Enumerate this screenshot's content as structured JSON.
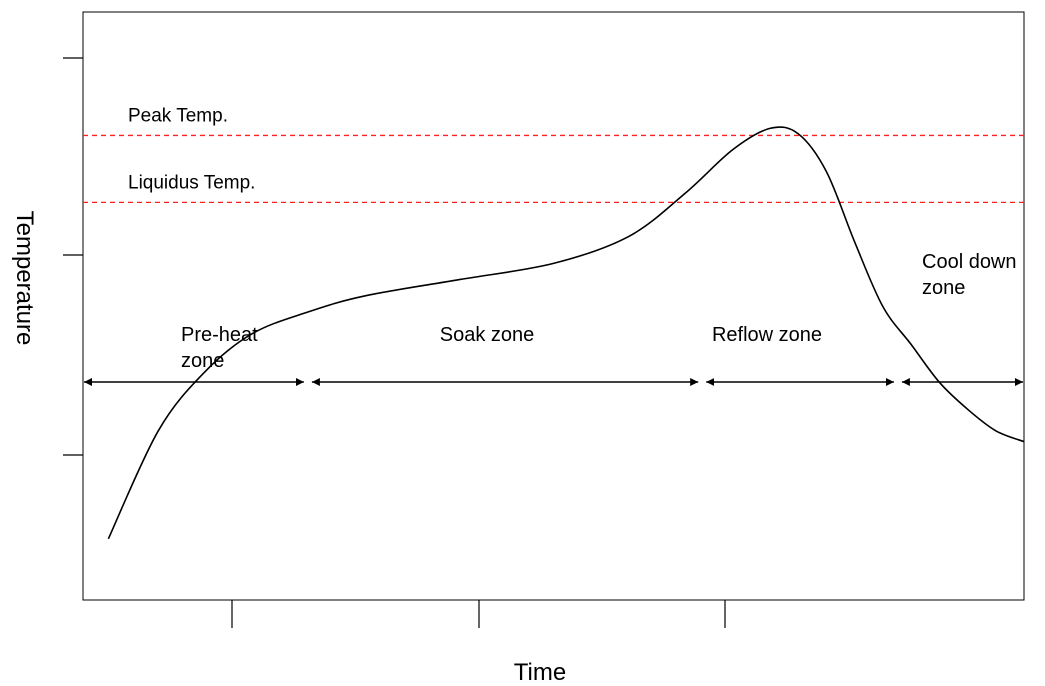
{
  "chart_data": {
    "type": "line",
    "title": "",
    "xlabel": "Time",
    "ylabel": "Temperature",
    "grid": false,
    "colors": {
      "curve": "#000000",
      "reference_line": "#ff2020",
      "axes": "#000000"
    },
    "reference_lines": [
      {
        "label": "Peak Temp.",
        "y": 0.827
      },
      {
        "label": "Liquidus Temp.",
        "y": 0.703
      }
    ],
    "zones": [
      {
        "label": "Pre-heat zone",
        "line1": "Pre-heat",
        "line2": "zone",
        "x_start": 0.0,
        "x_end": 0.239
      },
      {
        "label": "Soak zone",
        "line1": "Soak zone",
        "line2": "",
        "x_start": 0.239,
        "x_end": 0.658
      },
      {
        "label": "Reflow zone",
        "line1": "Reflow zone",
        "line2": "",
        "x_start": 0.658,
        "x_end": 0.866
      },
      {
        "label": "Cool down zone",
        "line1": "Cool down",
        "line2": "zone",
        "x_start": 0.866,
        "x_end": 1.0
      }
    ],
    "xlim": [
      0,
      1
    ],
    "ylim": [
      0,
      1
    ],
    "series": [
      {
        "x": [
          0.027,
          0.08,
          0.13,
          0.18,
          0.239,
          0.3,
          0.4,
          0.5,
          0.58,
          0.64,
          0.69,
          0.73,
          0.76,
          0.79,
          0.82,
          0.85,
          0.88,
          0.91,
          0.94,
          0.97,
          1.0
        ],
        "y": [
          0.08,
          0.28,
          0.39,
          0.46,
          0.5,
          0.53,
          0.56,
          0.59,
          0.64,
          0.72,
          0.8,
          0.84,
          0.83,
          0.76,
          0.63,
          0.51,
          0.44,
          0.37,
          0.32,
          0.28,
          0.26
        ]
      }
    ]
  }
}
